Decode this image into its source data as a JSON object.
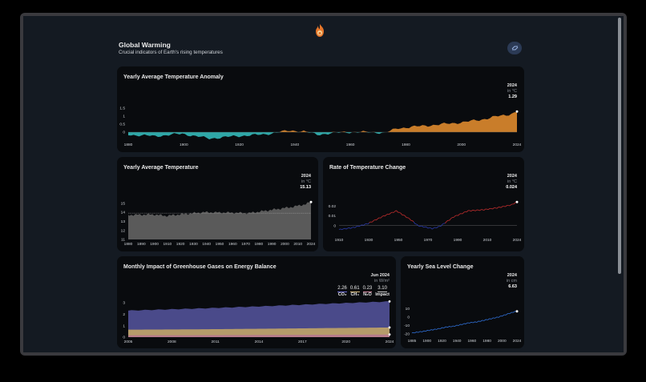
{
  "header": {
    "title": "Global Warming",
    "subtitle": "Crucial indicators of Earth's rising temperatures",
    "logo": "flame-icon",
    "theme_toggle_icon": "theme-toggle-icon"
  },
  "colors": {
    "positive_fill": "#c97d2a",
    "negative_fill": "#2fa7a7",
    "temperature_fill": "#5a5a5a",
    "rate_line_low": "#2a3aa8",
    "rate_line_high": "#c42e2e",
    "sea_line": "#2f6fd6",
    "co2_fill": "#4a4a8a",
    "ch4_fill": "#b59b6a",
    "n2o_fill": "#b67b8b"
  },
  "cards": {
    "anomaly": {
      "title": "Yearly Average Temperature Anomaly",
      "year": "2024",
      "unit": "in °C",
      "value": "1.29"
    },
    "avg_temp": {
      "title": "Yearly Average Temperature",
      "year": "2024",
      "unit": "in °C",
      "value": "15.13"
    },
    "rate": {
      "title": "Rate of Temperature Change",
      "year": "2024",
      "unit": "in °C",
      "value": "0.024"
    },
    "ghg": {
      "title": "Monthly Impact of Greenhouse Gases on Energy Balance",
      "date": "Jun 2024",
      "unit": "in W/m²",
      "legend": [
        {
          "value": "2.26",
          "label": "CO₂"
        },
        {
          "value": "0.61",
          "label": "CH₄"
        },
        {
          "value": "0.23",
          "label": "N₂O"
        },
        {
          "value": "3.10",
          "label": "Impact"
        }
      ]
    },
    "sea": {
      "title": "Yearly Sea Level Change",
      "year": "2024",
      "unit": "in cm",
      "value": "6.63"
    }
  },
  "chart_data": [
    {
      "id": "anomaly",
      "type": "area",
      "x_ticks": [
        "1880",
        "1900",
        "1920",
        "1940",
        "1960",
        "1980",
        "2000",
        "2024"
      ],
      "y_ticks": [
        "0",
        "0.5",
        "1",
        "1.5"
      ],
      "xlim": [
        1880,
        2024
      ],
      "ylim": [
        -0.5,
        1.5
      ],
      "x": [
        1880,
        1890,
        1900,
        1910,
        1920,
        1930,
        1940,
        1945,
        1950,
        1960,
        1970,
        1975,
        1980,
        1990,
        2000,
        2010,
        2015,
        2020,
        2024
      ],
      "y": [
        -0.16,
        -0.25,
        -0.1,
        -0.4,
        -0.25,
        -0.15,
        0.1,
        0.05,
        -0.15,
        0.0,
        0.0,
        -0.05,
        0.25,
        0.4,
        0.55,
        0.75,
        0.95,
        1.05,
        1.29
      ]
    },
    {
      "id": "avg_temp",
      "type": "area",
      "x_ticks": [
        "1880",
        "1890",
        "1900",
        "1910",
        "1920",
        "1930",
        "1940",
        "1950",
        "1960",
        "1970",
        "1980",
        "1990",
        "2000",
        "2010",
        "2024"
      ],
      "y_ticks": [
        "11",
        "12",
        "13",
        "14",
        "15"
      ],
      "xlim": [
        1880,
        2024
      ],
      "ylim": [
        11,
        15.5
      ],
      "x": [
        1880,
        1900,
        1910,
        1920,
        1940,
        1960,
        1975,
        1990,
        2000,
        2010,
        2020,
        2024
      ],
      "y": [
        13.7,
        13.75,
        13.6,
        13.75,
        14.0,
        13.95,
        13.9,
        14.2,
        14.4,
        14.6,
        14.9,
        15.13
      ]
    },
    {
      "id": "rate",
      "type": "line",
      "x_ticks": [
        "1910",
        "1930",
        "1950",
        "1970",
        "1990",
        "2010",
        "2024"
      ],
      "y_ticks": [
        "0",
        "0.01",
        "0.02"
      ],
      "xlim": [
        1900,
        2024
      ],
      "ylim": [
        -0.01,
        0.025
      ],
      "x": [
        1900,
        1910,
        1920,
        1930,
        1940,
        1950,
        1955,
        1965,
        1970,
        1980,
        1990,
        2000,
        2010,
        2020,
        2024
      ],
      "y": [
        -0.004,
        -0.002,
        0.002,
        0.009,
        0.015,
        0.006,
        0.0,
        -0.003,
        -0.001,
        0.009,
        0.015,
        0.016,
        0.018,
        0.021,
        0.024
      ]
    },
    {
      "id": "ghg",
      "type": "area",
      "x_ticks": [
        "2005",
        "2008",
        "2011",
        "2014",
        "2017",
        "2020",
        "2024"
      ],
      "y_ticks": [
        "0",
        "1",
        "2",
        "3"
      ],
      "xlim": [
        2005,
        2024.5
      ],
      "ylim": [
        0,
        3.2
      ],
      "series": [
        {
          "name": "CO₂",
          "x": [
            2005,
            2010,
            2015,
            2020,
            2024.5
          ],
          "y": [
            1.66,
            1.8,
            1.95,
            2.12,
            2.26
          ]
        },
        {
          "name": "CH₄",
          "x": [
            2005,
            2010,
            2015,
            2020,
            2024.5
          ],
          "y": [
            0.49,
            0.51,
            0.54,
            0.58,
            0.61
          ]
        },
        {
          "name": "N₂O",
          "x": [
            2005,
            2010,
            2015,
            2020,
            2024.5
          ],
          "y": [
            0.16,
            0.17,
            0.19,
            0.21,
            0.23
          ]
        }
      ]
    },
    {
      "id": "sea",
      "type": "line",
      "x_ticks": [
        "1885",
        "1900",
        "1920",
        "1940",
        "1960",
        "1980",
        "2000",
        "2024"
      ],
      "y_ticks": [
        "-20",
        "-10",
        "0",
        "10"
      ],
      "xlim": [
        1885,
        2024
      ],
      "ylim": [
        -22,
        14
      ],
      "x": [
        1885,
        1900,
        1920,
        1930,
        1940,
        1950,
        1960,
        1970,
        1980,
        1990,
        2000,
        2010,
        2020,
        2024
      ],
      "y": [
        -19,
        -17,
        -14,
        -12,
        -11,
        -9,
        -7,
        -6,
        -4,
        -2,
        0,
        3,
        6,
        6.63
      ]
    }
  ]
}
